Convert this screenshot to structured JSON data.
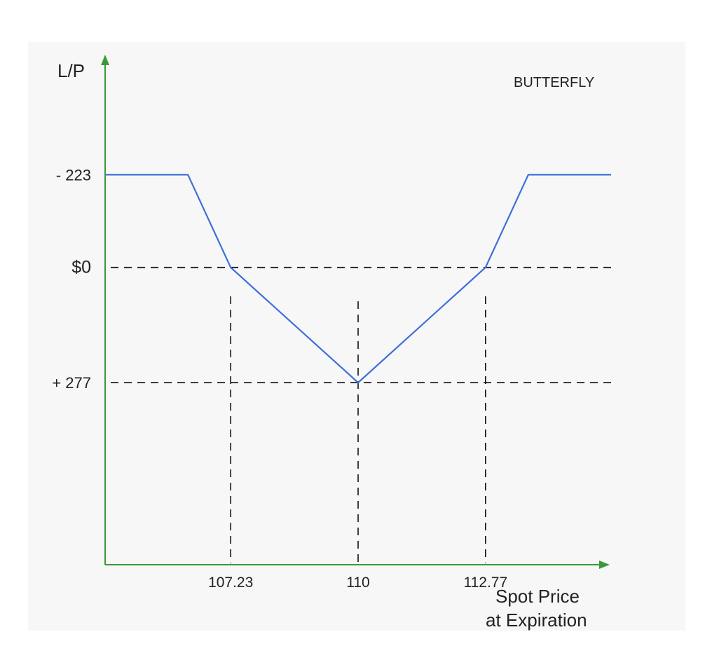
{
  "chart_data": {
    "type": "line",
    "title": "BUTTERFLY",
    "ylabel": "L/P",
    "xlabel": "Spot Price at Expiration",
    "xlabel_lines": [
      "Spot Price",
      "at Expiration"
    ],
    "x_ticks": [
      "107.23",
      "110",
      "112.77"
    ],
    "y_ticks": [
      "- 223",
      "$0",
      "+ 277"
    ],
    "series": [
      {
        "x": [
          104.5,
          106.3,
          107.23,
          110,
          112.77,
          113.7,
          115.5
        ],
        "y": [
          -223,
          -223,
          0,
          277,
          0,
          -223,
          -223
        ]
      }
    ],
    "reference_lines": {
      "horizontal": [
        0,
        277
      ],
      "vertical": [
        107.23,
        110,
        112.77
      ]
    },
    "xlim": [
      104.5,
      115.5
    ],
    "ylim": [
      -500,
      715
    ],
    "grid": false,
    "colors": {
      "line": "#3e6fd8",
      "axis": "#3a9a3a",
      "reference": "#111111"
    }
  }
}
